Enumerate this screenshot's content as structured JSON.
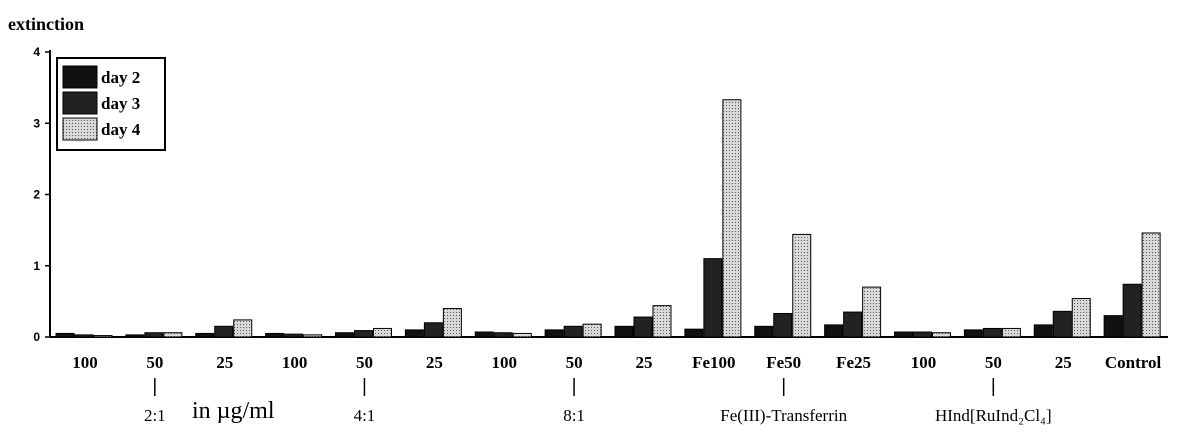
{
  "chart_data": {
    "type": "bar",
    "ylabel": "extinction",
    "ylim": [
      0,
      4
    ],
    "yticks": [
      0,
      1,
      2,
      3,
      4
    ],
    "categories": [
      "100",
      "50",
      "25",
      "100",
      "50",
      "25",
      "100",
      "50",
      "25",
      "Fe100",
      "Fe50",
      "Fe25",
      "100",
      "50",
      "25",
      "Control"
    ],
    "series": [
      {
        "name": "day 2",
        "color": "#111111",
        "values": [
          0.05,
          0.03,
          0.05,
          0.05,
          0.06,
          0.1,
          0.07,
          0.1,
          0.15,
          0.11,
          0.15,
          0.17,
          0.07,
          0.1,
          0.17,
          0.3
        ]
      },
      {
        "name": "day 3",
        "color": "#222222",
        "values": [
          0.03,
          0.06,
          0.15,
          0.04,
          0.09,
          0.2,
          0.06,
          0.15,
          0.28,
          1.1,
          0.33,
          0.35,
          0.07,
          0.12,
          0.36,
          0.74
        ]
      },
      {
        "name": "day 4",
        "color": "#d9d9d9",
        "values": [
          0.02,
          0.06,
          0.24,
          0.03,
          0.12,
          0.4,
          0.05,
          0.18,
          0.44,
          3.33,
          1.44,
          0.7,
          0.06,
          0.12,
          0.54,
          1.46
        ]
      }
    ],
    "groups": [
      {
        "label": "2:1",
        "center_index": 1
      },
      {
        "label": "4:1",
        "center_index": 4
      },
      {
        "label": "8:1",
        "center_index": 7
      },
      {
        "label": "Fe(III)-Transferrin",
        "center_index": 10
      },
      {
        "label": "HInd[RuInd₂Cl₄]",
        "center_index": 13
      }
    ],
    "unit_label": "in µg/ml",
    "legend_position": "top-left"
  }
}
